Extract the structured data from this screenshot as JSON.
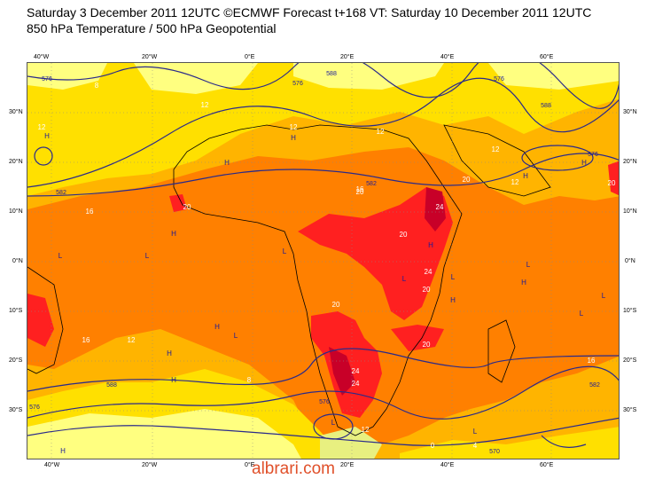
{
  "title": {
    "line1": "Saturday 3 December 2011 12UTC ©ECMWF Forecast t+168 VT: Saturday 10 December 2011 12UTC",
    "line2": "850 hPa Temperature / 500 hPa Geopotential"
  },
  "lon_labels": [
    "40°W",
    "20°W",
    "0°E",
    "20°E",
    "40°E",
    "60°E"
  ],
  "lat_labels": [
    "30°N",
    "20°N",
    "10°N",
    "0°N",
    "10°S",
    "20°S",
    "30°S"
  ],
  "colors": {
    "t_4_8": "#ffff80",
    "t_8_12": "#ffe000",
    "t_12_16": "#ffb400",
    "t_16_20": "#ff8000",
    "t_20_24": "#ff2020",
    "t_24_plus": "#c80028",
    "geopotential_line": "#2a2a8a",
    "ocean_pale": "#e8f080",
    "watermark": "#e0502a"
  },
  "temperature_labels": [
    "8",
    "12",
    "12",
    "16",
    "20",
    "20",
    "24",
    "20",
    "24",
    "20",
    "24",
    "16",
    "20",
    "12",
    "16",
    "12",
    "12",
    "20",
    "24",
    "12",
    "16",
    "12",
    "12",
    "20",
    "20",
    "8",
    "0",
    "4"
  ],
  "geopotential_labels": [
    "576",
    "576",
    "588",
    "582",
    "582",
    "576",
    "588",
    "576",
    "576",
    "588",
    "582",
    "576",
    "570"
  ],
  "pressure_centers": [
    "H",
    "H",
    "H",
    "L",
    "L",
    "H",
    "L",
    "H",
    "H",
    "L",
    "L",
    "L",
    "H",
    "H",
    "H",
    "L",
    "H",
    "L",
    "L",
    "H",
    "L",
    "H",
    "H",
    "L"
  ],
  "watermark": "albrari.com"
}
